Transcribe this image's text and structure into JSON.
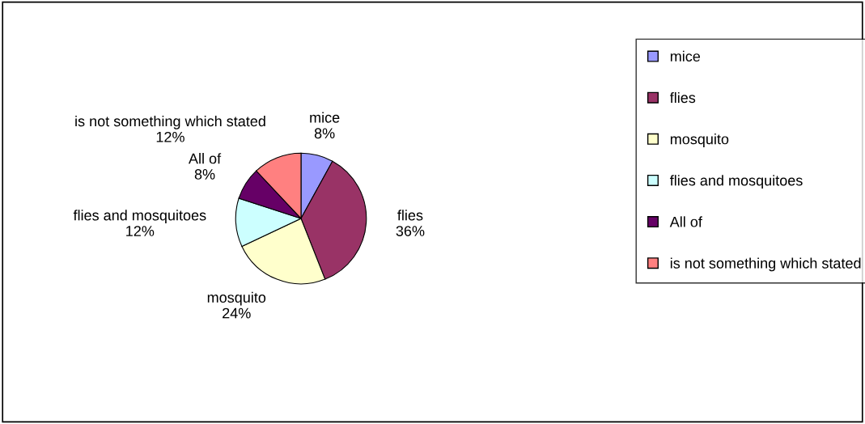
{
  "chart_data": {
    "type": "pie",
    "categories": [
      "mice",
      "flies",
      "mosquito",
      "flies and mosquitoes",
      "All of",
      "is not something which stated"
    ],
    "values": [
      8,
      36,
      24,
      12,
      8,
      12
    ],
    "colors": [
      "#9999ff",
      "#993366",
      "#ffffcc",
      "#ccffff",
      "#660066",
      "#ff8080"
    ],
    "value_labels": [
      "8%",
      "36%",
      "24%",
      "12%",
      "8%",
      "12%"
    ],
    "legend": "right"
  }
}
